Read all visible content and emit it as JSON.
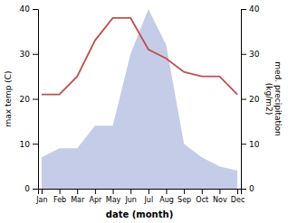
{
  "chart_data": {
    "type": "line",
    "categories": [
      "Jan",
      "Feb",
      "Mar",
      "Apr",
      "May",
      "Jun",
      "Jul",
      "Aug",
      "Sep",
      "Oct",
      "Nov",
      "Dec"
    ],
    "series": [
      {
        "type": "area",
        "color": "#c5cce8",
        "values": [
          7,
          9,
          9,
          14,
          14,
          30,
          40,
          32,
          10,
          7,
          5,
          4
        ]
      },
      {
        "type": "line",
        "color": "#c0504d",
        "axis": "y2",
        "values": [
          21,
          21,
          25,
          33,
          38,
          38,
          31,
          29,
          26,
          25,
          25,
          21
        ]
      }
    ],
    "xlabel": "date (month)",
    "ylabel": "max temp (C)",
    "y2label": "med. precipitation\n(kg/m2)",
    "ylim": [
      0,
      40
    ],
    "yticks": [
      0,
      10,
      20,
      30,
      40
    ],
    "y2lim": [
      0,
      40
    ],
    "y2ticks": [
      0,
      10,
      20,
      30,
      40
    ],
    "grid": false
  }
}
